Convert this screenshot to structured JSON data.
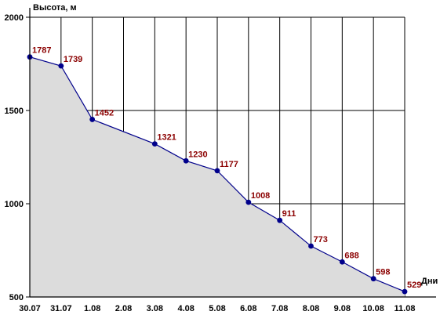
{
  "chart_data": {
    "type": "area",
    "title": "",
    "ylabel": "Высота, м",
    "xlabel": "Дни",
    "categories": [
      "30.07",
      "31.07",
      "1.08",
      "2.08",
      "3.08",
      "4.08",
      "5.08",
      "6.08",
      "7.08",
      "8.08",
      "9.08",
      "10.08",
      "11.08"
    ],
    "yticks": [
      500,
      1000,
      1500,
      2000
    ],
    "ylim": [
      500,
      2000
    ],
    "grid": true,
    "legend": "none",
    "series": [
      {
        "points": [
          {
            "x": 0,
            "y": 1787
          },
          {
            "x": 1,
            "y": 1739
          },
          {
            "x": 2,
            "y": 1452
          },
          {
            "x": 4,
            "y": 1321
          },
          {
            "x": 5,
            "y": 1230
          },
          {
            "x": 6,
            "y": 1177
          },
          {
            "x": 7,
            "y": 1008
          },
          {
            "x": 8,
            "y": 911
          },
          {
            "x": 9,
            "y": 773
          },
          {
            "x": 10,
            "y": 688
          },
          {
            "x": 11,
            "y": 598
          },
          {
            "x": 12,
            "y": 529
          }
        ]
      }
    ],
    "colors": {
      "line": "#00008b",
      "marker": "#00008b",
      "fill": "#dcdcdc",
      "label": "#8b0000",
      "grid": "#000000"
    }
  }
}
